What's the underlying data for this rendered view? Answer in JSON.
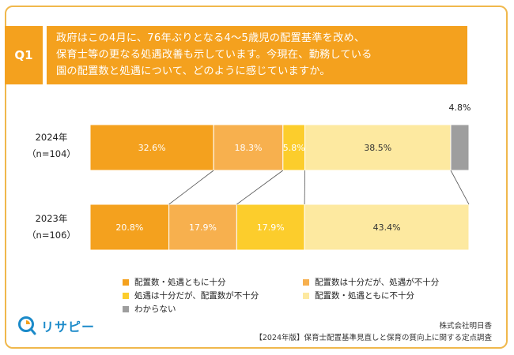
{
  "question": {
    "tab": "Q1",
    "lines": [
      "政府はこの4月に、76年ぶりとなる4～5歳児の配置基準を改め、",
      "保育士等の更なる処遇改善も示しています。今現在、勤務している",
      "園の配置数と処遇について、どのように感じていますか。"
    ]
  },
  "rows": [
    {
      "year": "2024年",
      "n": "（n=104）"
    },
    {
      "year": "2023年",
      "n": "（n=106）"
    }
  ],
  "colors": {
    "accent": "#f4a11e",
    "seg1": "#f4a11e",
    "seg2": "#f7b04e",
    "seg3": "#fccd2c",
    "seg4": "#fde9a0",
    "seg5": "#9e9e9e"
  },
  "chart_data": {
    "type": "bar",
    "orientation": "horizontal",
    "stacked": true,
    "percent": true,
    "categories": [
      "2024年（n=104）",
      "2023年（n=106）"
    ],
    "series": [
      {
        "name": "配置数・処遇ともに十分",
        "values": [
          32.6,
          20.8
        ],
        "labels": [
          "32.6%",
          "20.8%"
        ]
      },
      {
        "name": "配置数は十分だが、処遇が不十分",
        "values": [
          18.3,
          17.9
        ],
        "labels": [
          "18.3%",
          "17.9%"
        ]
      },
      {
        "name": "処遇は十分だが、配置数が不十分",
        "values": [
          5.8,
          17.9
        ],
        "labels": [
          "5.8%",
          "17.9%"
        ]
      },
      {
        "name": "配置数・処遇ともに不十分",
        "values": [
          38.5,
          43.4
        ],
        "labels": [
          "38.5%",
          "43.4%"
        ]
      },
      {
        "name": "わからない",
        "values": [
          4.8,
          0
        ],
        "labels": [
          "4.8%",
          ""
        ]
      }
    ],
    "xlim": [
      0,
      100
    ],
    "legend_position": "bottom"
  },
  "logo": {
    "text": "リサピー",
    "icon": "risapi-logo-icon"
  },
  "credit": {
    "company": "株式会社明日香",
    "survey": "【2024年版】保育士配置基準見直しと保育の質向上に関する定点調査"
  }
}
